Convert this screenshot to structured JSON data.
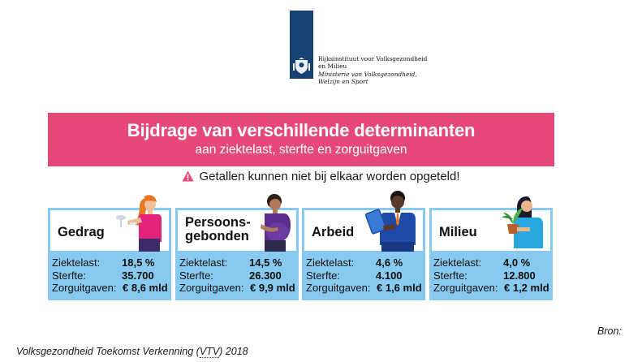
{
  "logo": {
    "line1": "Rijksinstituut voor Volksgezondheid",
    "line2": "en Milieu",
    "line3": "Ministerie van Volksgezondheid,",
    "line4": "Welzijn en Sport",
    "bar_color": "#154273"
  },
  "banner": {
    "title": "Bijdrage van verschillende determinanten",
    "subtitle": "aan ziektelast, sterfte en zorguitgaven",
    "color": "#e7487a"
  },
  "warning": {
    "icon": "warning-triangle-icon",
    "text": "Getallen kunnen niet bij elkaar worden opgeteld!"
  },
  "labels": {
    "ziektelast": "Ziektelast:",
    "sterfte": "Sterfte:",
    "zorguitgaven": "Zorguitgaven:"
  },
  "cards": [
    {
      "title": "Gedrag",
      "ziektelast": "18,5 %",
      "sterfte": "35.700",
      "zorguitgaven": "€ 8,6 mld",
      "illustration": "person-drinking-smoking-icon"
    },
    {
      "title1": "Persoons-",
      "title2": "gebonden",
      "ziektelast": "14,5 %",
      "sterfte": "26.300",
      "zorguitgaven": "€ 9,9 mld",
      "illustration": "pregnant-woman-icon"
    },
    {
      "title": "Arbeid",
      "ziektelast": "4,6 %",
      "sterfte": "4.100",
      "zorguitgaven": "€ 1,6 mld",
      "illustration": "worker-with-tablet-icon"
    },
    {
      "title": "Milieu",
      "ziektelast": "4,0 %",
      "sterfte": "12.800",
      "zorguitgaven": "€ 1,2 mld",
      "illustration": "woman-with-plant-icon"
    }
  ],
  "card_color": "#88c9ef",
  "source_label": "Bron:",
  "reference": {
    "before": "Volksgezondheid Toekomst Verkenning (",
    "abbr": "VTV",
    "after": ") 2018"
  }
}
